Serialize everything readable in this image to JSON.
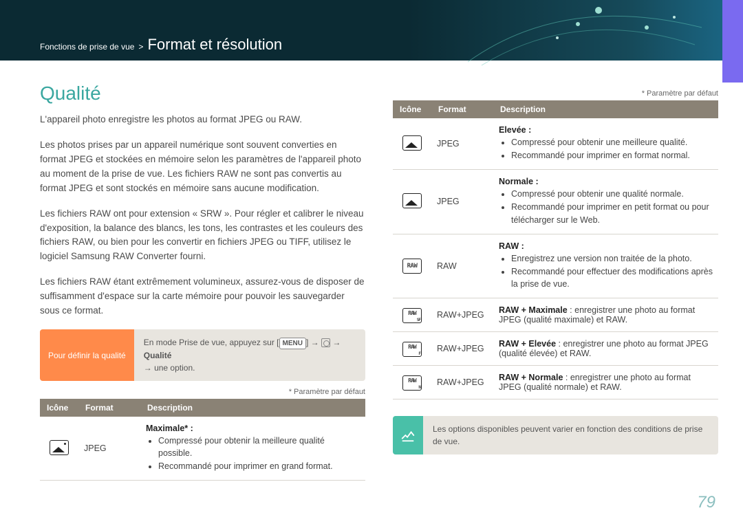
{
  "breadcrumb": {
    "section": "Fonctions de prise de vue",
    "separator": ">",
    "title": "Format et résolution"
  },
  "heading": "Qualité",
  "paragraphs": {
    "p1": "L'appareil photo enregistre les photos au format JPEG ou RAW.",
    "p2": "Les photos prises par un appareil numérique sont souvent converties en format JPEG et stockées en mémoire selon les paramètres de l'appareil photo au moment de la prise de vue. Les fichiers RAW ne sont pas convertis au format JPEG et sont stockés en mémoire sans aucune modification.",
    "p3": "Les fichiers RAW ont pour extension « SRW ». Pour régler et calibrer le niveau d'exposition, la balance des blancs, les tons, les contrastes et les couleurs des fichiers RAW, ou bien pour les convertir en fichiers JPEG ou TIFF, utilisez le logiciel Samsung RAW Converter fourni.",
    "p4": "Les fichiers RAW étant extrêmement volumineux, assurez-vous de disposer de suffisamment d'espace sur la carte mémoire pour pouvoir les sauvegarder sous ce format."
  },
  "tip": {
    "label": "Pour définir la qualité",
    "prefix": "En mode Prise de vue, appuyez sur",
    "menu_btn": "MENU",
    "arrow1": "→",
    "arrow2": "→",
    "bold": "Qualité",
    "suffix": "→ une option."
  },
  "default_note": "* Paramètre par défaut",
  "table": {
    "headers": {
      "icon": "Icône",
      "format": "Format",
      "desc": "Description"
    }
  },
  "left_rows": [
    {
      "icon": "jpeg-sf",
      "format": "JPEG",
      "title": "Maximale* :",
      "bullets": [
        "Compressé pour obtenir la meilleure qualité possible.",
        "Recommandé pour imprimer en grand format."
      ]
    }
  ],
  "right_rows": [
    {
      "icon": "jpeg-f",
      "format": "JPEG",
      "title": "Elevée :",
      "bullets": [
        "Compressé pour obtenir une meilleure qualité.",
        "Recommandé pour imprimer en format normal."
      ]
    },
    {
      "icon": "jpeg-n",
      "format": "JPEG",
      "title": "Normale :",
      "bullets": [
        "Compressé pour obtenir une qualité normale.",
        "Recommandé pour imprimer en petit format ou pour télécharger sur le Web."
      ]
    },
    {
      "icon": "raw",
      "format": "RAW",
      "title": "RAW :",
      "bullets": [
        "Enregistrez une version non traitée de la photo.",
        "Recommandé pour effectuer des modifications après la prise de vue."
      ]
    },
    {
      "icon": "rawj",
      "sub": "SF",
      "format": "RAW+JPEG",
      "title_bold": "RAW + Maximale",
      "title_rest": " : enregistrer une photo au format JPEG (qualité maximale) et RAW."
    },
    {
      "icon": "rawj",
      "sub": "F",
      "format": "RAW+JPEG",
      "title_bold": "RAW + Elevée",
      "title_rest": " : enregistrer une photo au format JPEG (qualité élevée) et RAW."
    },
    {
      "icon": "rawj",
      "sub": "N",
      "format": "RAW+JPEG",
      "title_bold": "RAW + Normale",
      "title_rest": " : enregistrer une photo au format JPEG (qualité normale) et RAW."
    }
  ],
  "info_note": "Les options disponibles peuvent varier en fonction des conditions de prise de vue.",
  "page_number": "79",
  "colors": {
    "accent": "#3aa7a0",
    "tip_bg": "#ff8a4a",
    "panel_bg": "#e8e5df",
    "th_bg": "#8a8275",
    "info_bg": "#49c0a8",
    "purple": "#7a6af0"
  }
}
